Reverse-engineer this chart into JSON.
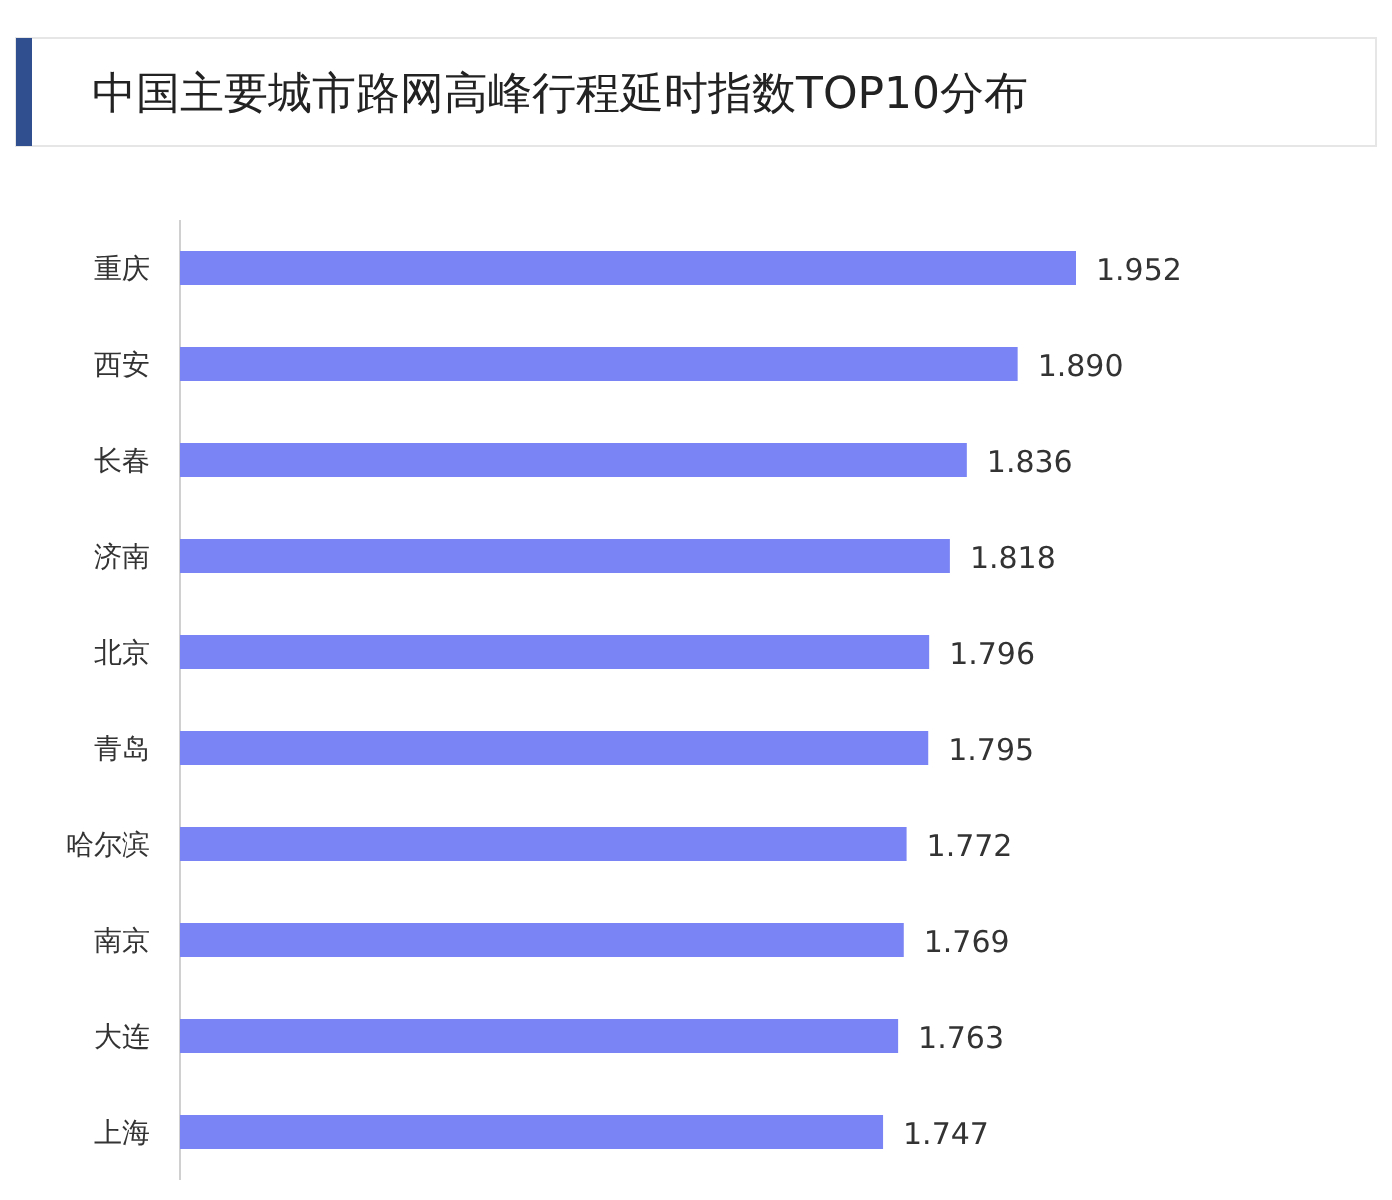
{
  "chart_data": {
    "type": "bar",
    "orientation": "horizontal",
    "title": "中国主要城市路网高峰行程延时指数TOP10分布",
    "categories": [
      "重庆",
      "西安",
      "长春",
      "济南",
      "北京",
      "青岛",
      "哈尔滨",
      "南京",
      "大连",
      "上海"
    ],
    "values": [
      1.952,
      1.89,
      1.836,
      1.818,
      1.796,
      1.795,
      1.772,
      1.769,
      1.763,
      1.747
    ],
    "value_labels": [
      "1.952",
      "1.890",
      "1.836",
      "1.818",
      "1.796",
      "1.795",
      "1.772",
      "1.769",
      "1.763",
      "1.747"
    ],
    "color": "#7b84f4",
    "xlim": [
      1,
      1.952
    ],
    "tick_labels": "y"
  }
}
